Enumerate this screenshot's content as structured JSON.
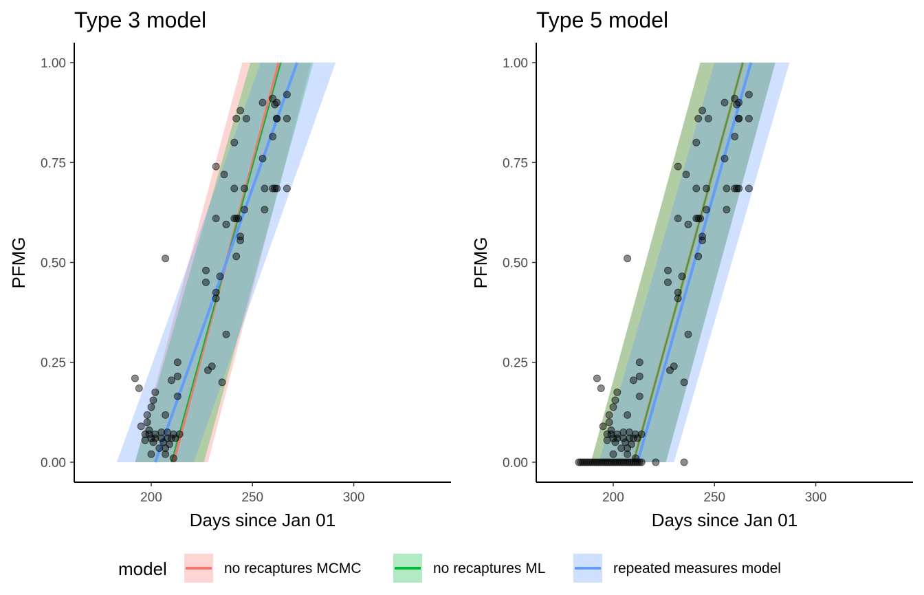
{
  "legend": {
    "title": "model",
    "position": "bottom",
    "entries": [
      {
        "key": "mcmc",
        "label": "no recaptures MCMC",
        "line": "#f8766d",
        "fill": "#f8766d",
        "fill_opacity": 0.3
      },
      {
        "key": "ml",
        "label": "no recaptures ML",
        "line": "#00ba38",
        "fill": "#00ba38",
        "fill_opacity": 0.3
      },
      {
        "key": "rm",
        "label": "repeated measures model",
        "line": "#619cff",
        "fill": "#619cff",
        "fill_opacity": 0.3
      }
    ]
  },
  "chart_data": [
    {
      "type": "scatter",
      "title": "Type 3 model",
      "xlabel": "Days since Jan 01",
      "ylabel": "PFMG",
      "xlim": [
        162,
        348
      ],
      "ylim": [
        -0.05,
        1.05
      ],
      "xticks": [
        200,
        250,
        300
      ],
      "xtick_labels": [
        "200",
        "250",
        "300"
      ],
      "yticks": [
        0,
        0.25,
        0.5,
        0.75,
        1
      ],
      "ytick_labels": [
        "0.00",
        "0.25",
        "0.50",
        "0.75",
        "1.00"
      ],
      "grid": false,
      "series": [
        {
          "name": "no recaptures MCMC",
          "color": "#f8766d",
          "fit": [
            [
              211,
              0
            ],
            [
              263,
              1
            ]
          ],
          "band_lower": [
            [
              228,
              0
            ],
            [
              279,
              1
            ]
          ],
          "band_upper": [
            [
              192,
              0
            ],
            [
              245,
              1
            ]
          ]
        },
        {
          "name": "no recaptures ML",
          "color": "#00ba38",
          "fit": [
            [
              210,
              0
            ],
            [
              264,
              1
            ]
          ],
          "band_lower": [
            [
              226,
              0
            ],
            [
              280,
              1
            ]
          ],
          "band_upper": [
            [
              192,
              0
            ],
            [
              249,
              1
            ]
          ]
        },
        {
          "name": "repeated measures model",
          "color": "#619cff",
          "fit": [
            [
              202,
              0
            ],
            [
              272,
              1
            ]
          ],
          "band_lower": [
            [
              221,
              0
            ],
            [
              291,
              1
            ]
          ],
          "band_upper": [
            [
              183,
              0
            ],
            [
              254,
              1
            ]
          ]
        }
      ],
      "points": [
        [
          192,
          0.21
        ],
        [
          194,
          0.185
        ],
        [
          195,
          0.09
        ],
        [
          197,
          0.07
        ],
        [
          197,
          0.055
        ],
        [
          198,
          0.1
        ],
        [
          198,
          0.118
        ],
        [
          199,
          0.08
        ],
        [
          199,
          0.07
        ],
        [
          200,
          0.138
        ],
        [
          200,
          0.06
        ],
        [
          200,
          0.02
        ],
        [
          201,
          0.155
        ],
        [
          201,
          0.05
        ],
        [
          202,
          0.175
        ],
        [
          202,
          0.06
        ],
        [
          202,
          0.07
        ],
        [
          204,
          0.035
        ],
        [
          205,
          0.075
        ],
        [
          205,
          0.06
        ],
        [
          206,
          0.05
        ],
        [
          207,
          0.118
        ],
        [
          207,
          0.02
        ],
        [
          207,
          0.035
        ],
        [
          207,
          0.51
        ],
        [
          208,
          0.075
        ],
        [
          208,
          0.06
        ],
        [
          209,
          0.045
        ],
        [
          210,
          0.205
        ],
        [
          210,
          0.06
        ],
        [
          211,
          0.01
        ],
        [
          211,
          0.07
        ],
        [
          212,
          0.06
        ],
        [
          213,
          0.25
        ],
        [
          213,
          0.215
        ],
        [
          213,
          0.165
        ],
        [
          214,
          0.07
        ],
        [
          227,
          0.48
        ],
        [
          227,
          0.45
        ],
        [
          228,
          0.23
        ],
        [
          230,
          0.24
        ],
        [
          232,
          0.425
        ],
        [
          232,
          0.41
        ],
        [
          232,
          0.61
        ],
        [
          232,
          0.74
        ],
        [
          234,
          0.465
        ],
        [
          235,
          0.2
        ],
        [
          236,
          0.72
        ],
        [
          237,
          0.32
        ],
        [
          237,
          0.595
        ],
        [
          241,
          0.61
        ],
        [
          241,
          0.685
        ],
        [
          241,
          0.8
        ],
        [
          242,
          0.515
        ],
        [
          242,
          0.86
        ],
        [
          242,
          0.61
        ],
        [
          243,
          0.61
        ],
        [
          244,
          0.565
        ],
        [
          244,
          0.555
        ],
        [
          244,
          0.88
        ],
        [
          246,
          0.685
        ],
        [
          246,
          0.632
        ],
        [
          247,
          0.86
        ],
        [
          255,
          0.9
        ],
        [
          255,
          0.76
        ],
        [
          256,
          0.685
        ],
        [
          256,
          0.632
        ],
        [
          260,
          0.91
        ],
        [
          260,
          0.815
        ],
        [
          260,
          0.685
        ],
        [
          261,
          0.895
        ],
        [
          261,
          0.685
        ],
        [
          262,
          0.86
        ],
        [
          262,
          0.86
        ],
        [
          262,
          0.9
        ],
        [
          262,
          0.685
        ],
        [
          267,
          0.92
        ],
        [
          267,
          0.86
        ],
        [
          267,
          0.685
        ]
      ]
    },
    {
      "type": "scatter",
      "title": "Type 5 model",
      "xlabel": "Days since Jan 01",
      "ylabel": "PFMG",
      "xlim": [
        162,
        348
      ],
      "ylim": [
        -0.05,
        1.05
      ],
      "xticks": [
        200,
        250,
        300
      ],
      "xtick_labels": [
        "200",
        "250",
        "300"
      ],
      "yticks": [
        0,
        0.25,
        0.5,
        0.75,
        1
      ],
      "ytick_labels": [
        "0.00",
        "0.25",
        "0.50",
        "0.75",
        "1.00"
      ],
      "grid": false,
      "series": [
        {
          "name": "no recaptures MCMC",
          "color": "#f8766d",
          "fit": [
            [
              210,
              0
            ],
            [
              264,
              1
            ]
          ],
          "band_lower": [
            [
              226,
              0
            ],
            [
              280,
              1
            ]
          ],
          "band_upper": [
            [
              189,
              0
            ],
            [
              243,
              1
            ]
          ]
        },
        {
          "name": "no recaptures ML",
          "color": "#00ba38",
          "fit": [
            [
              210,
              0
            ],
            [
              264,
              1
            ]
          ],
          "band_lower": [
            [
              226,
              0
            ],
            [
              280,
              1
            ]
          ],
          "band_upper": [
            [
              189,
              0
            ],
            [
              243,
              1
            ]
          ]
        },
        {
          "name": "repeated measures model",
          "color": "#619cff",
          "fit": [
            [
              212,
              0
            ],
            [
              268,
              1
            ]
          ],
          "band_lower": [
            [
              230,
              0
            ],
            [
              287,
              1
            ]
          ],
          "band_upper": [
            [
              193,
              0
            ],
            [
              250,
              1
            ]
          ]
        }
      ],
      "points": [
        [
          192,
          0.21
        ],
        [
          194,
          0.185
        ],
        [
          195,
          0.09
        ],
        [
          197,
          0.07
        ],
        [
          197,
          0.055
        ],
        [
          198,
          0.1
        ],
        [
          198,
          0.118
        ],
        [
          199,
          0.08
        ],
        [
          199,
          0.07
        ],
        [
          200,
          0.138
        ],
        [
          200,
          0.06
        ],
        [
          200,
          0.02
        ],
        [
          201,
          0.155
        ],
        [
          201,
          0.05
        ],
        [
          202,
          0.175
        ],
        [
          202,
          0.06
        ],
        [
          202,
          0.07
        ],
        [
          204,
          0.035
        ],
        [
          205,
          0.075
        ],
        [
          205,
          0.06
        ],
        [
          206,
          0.05
        ],
        [
          207,
          0.118
        ],
        [
          207,
          0.02
        ],
        [
          207,
          0.035
        ],
        [
          207,
          0.51
        ],
        [
          208,
          0.075
        ],
        [
          208,
          0.06
        ],
        [
          209,
          0.045
        ],
        [
          210,
          0.205
        ],
        [
          210,
          0.06
        ],
        [
          211,
          0.01
        ],
        [
          211,
          0.07
        ],
        [
          212,
          0.06
        ],
        [
          213,
          0.25
        ],
        [
          213,
          0.215
        ],
        [
          213,
          0.165
        ],
        [
          214,
          0.07
        ],
        [
          227,
          0.48
        ],
        [
          227,
          0.45
        ],
        [
          228,
          0.23
        ],
        [
          230,
          0.24
        ],
        [
          232,
          0.425
        ],
        [
          232,
          0.41
        ],
        [
          232,
          0.61
        ],
        [
          232,
          0.74
        ],
        [
          234,
          0.465
        ],
        [
          235,
          0.2
        ],
        [
          236,
          0.72
        ],
        [
          237,
          0.32
        ],
        [
          237,
          0.595
        ],
        [
          241,
          0.61
        ],
        [
          241,
          0.685
        ],
        [
          241,
          0.8
        ],
        [
          242,
          0.515
        ],
        [
          242,
          0.86
        ],
        [
          242,
          0.61
        ],
        [
          243,
          0.61
        ],
        [
          244,
          0.565
        ],
        [
          244,
          0.555
        ],
        [
          244,
          0.88
        ],
        [
          246,
          0.685
        ],
        [
          246,
          0.632
        ],
        [
          247,
          0.86
        ],
        [
          255,
          0.9
        ],
        [
          255,
          0.76
        ],
        [
          256,
          0.685
        ],
        [
          256,
          0.632
        ],
        [
          260,
          0.91
        ],
        [
          260,
          0.815
        ],
        [
          260,
          0.685
        ],
        [
          261,
          0.895
        ],
        [
          261,
          0.685
        ],
        [
          262,
          0.86
        ],
        [
          262,
          0.86
        ],
        [
          262,
          0.9
        ],
        [
          262,
          0.685
        ],
        [
          267,
          0.92
        ],
        [
          267,
          0.86
        ],
        [
          267,
          0.685
        ],
        [
          183,
          0
        ],
        [
          184,
          0
        ],
        [
          185,
          0
        ],
        [
          186,
          0
        ],
        [
          187,
          0
        ],
        [
          188,
          0
        ],
        [
          189,
          0
        ],
        [
          190,
          0
        ],
        [
          191,
          0
        ],
        [
          192,
          0
        ],
        [
          193,
          0
        ],
        [
          194,
          0
        ],
        [
          195,
          0
        ],
        [
          196,
          0
        ],
        [
          197,
          0
        ],
        [
          198,
          0
        ],
        [
          199,
          0
        ],
        [
          200,
          0
        ],
        [
          201,
          0
        ],
        [
          202,
          0
        ],
        [
          203,
          0
        ],
        [
          204,
          0
        ],
        [
          205,
          0
        ],
        [
          206,
          0
        ],
        [
          207,
          0
        ],
        [
          208,
          0
        ],
        [
          209,
          0
        ],
        [
          210,
          0
        ],
        [
          211,
          0
        ],
        [
          212,
          0
        ],
        [
          213,
          0
        ],
        [
          214,
          0
        ],
        [
          221,
          0
        ],
        [
          235,
          0
        ]
      ]
    }
  ]
}
